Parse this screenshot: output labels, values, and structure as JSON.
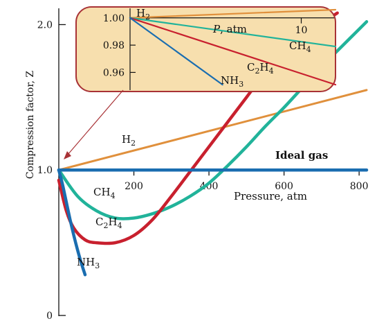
{
  "chart_data": {
    "type": "line",
    "ylabel": "Compression factor, Z",
    "xlabel": "Pressure, atm",
    "xlim": [
      0,
      820
    ],
    "ylim": [
      0,
      2.05
    ],
    "x_ticks": [
      200,
      400,
      600,
      800
    ],
    "x_tick_labels": [
      "200",
      "400",
      "600",
      "800"
    ],
    "y_ticks": [
      0,
      1.0,
      2.0
    ],
    "y_tick_labels": [
      "0",
      "1.0",
      "2.0"
    ],
    "series": [
      {
        "name": "H2",
        "display": "H",
        "sub": "2",
        "color": "#e0903c",
        "x": [
          0,
          820
        ],
        "y": [
          1.0,
          1.55
        ]
      },
      {
        "name": "Ideal gas",
        "display": "Ideal gas",
        "sub": "",
        "color": "#1a6db0",
        "x": [
          0,
          820
        ],
        "y": [
          1.0,
          1.0
        ]
      },
      {
        "name": "CH4",
        "display": "CH",
        "sub": "4",
        "color": "#21b39a",
        "x": [
          0,
          50,
          100,
          150,
          200,
          250,
          300,
          350,
          400,
          450,
          500,
          550,
          600,
          650,
          700,
          750,
          820
        ],
        "y": [
          1.0,
          0.82,
          0.72,
          0.67,
          0.67,
          0.7,
          0.75,
          0.82,
          0.91,
          1.03,
          1.16,
          1.3,
          1.43,
          1.57,
          1.71,
          1.84,
          2.02
        ]
      },
      {
        "name": "C2H4",
        "display": "C",
        "sub": "2",
        "tail": "H",
        "sub2": "4",
        "color": "#c8202e",
        "x": [
          0,
          20,
          40,
          70,
          100,
          150,
          200,
          250,
          300,
          350,
          400,
          450,
          500,
          550,
          600,
          650,
          700,
          742
        ],
        "y": [
          0.93,
          0.72,
          0.6,
          0.52,
          0.5,
          0.5,
          0.55,
          0.66,
          0.82,
          0.99,
          1.16,
          1.33,
          1.5,
          1.67,
          1.82,
          1.93,
          2.01,
          2.08
        ]
      },
      {
        "name": "NH3",
        "display": "NH",
        "sub": "3",
        "color": "#1a6db0",
        "x": [
          0,
          10,
          20,
          30,
          40,
          50,
          60,
          70
        ],
        "y": [
          1.0,
          0.9,
          0.78,
          0.66,
          0.55,
          0.45,
          0.36,
          0.28
        ]
      }
    ],
    "inset": {
      "xlabel": "P, atm",
      "x_tick_labels": [
        "10"
      ],
      "xlim": [
        0,
        12
      ],
      "y_tick_labels": [
        "1.00",
        "0.98",
        "0.96"
      ],
      "ylim": [
        0.947,
        1.007
      ],
      "series": [
        {
          "name": "H2",
          "x": [
            0,
            12
          ],
          "y": [
            1.0,
            1.006
          ]
        },
        {
          "name": "CH4",
          "x": [
            0,
            12
          ],
          "y": [
            1.0,
            0.979
          ]
        },
        {
          "name": "C2H4",
          "x": [
            0,
            12
          ],
          "y": [
            1.0,
            0.951
          ]
        },
        {
          "name": "NH3",
          "x": [
            0,
            5.4
          ],
          "y": [
            1.0,
            0.951
          ]
        }
      ]
    }
  }
}
